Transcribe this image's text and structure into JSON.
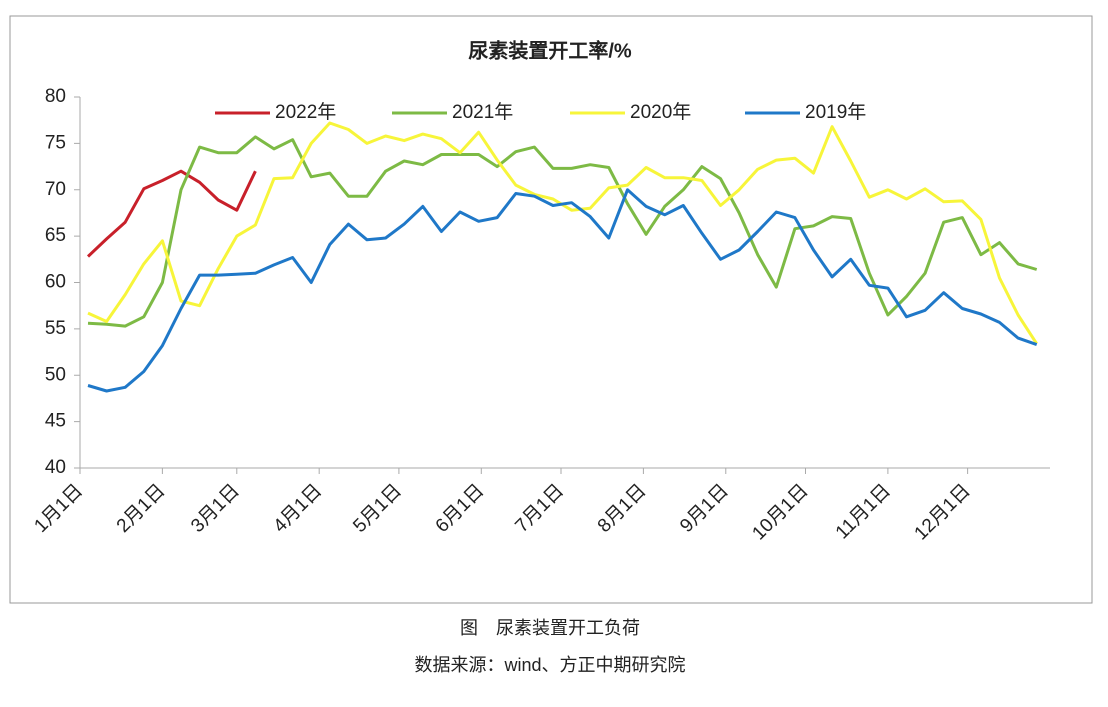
{
  "chart_data": {
    "type": "line",
    "title": "尿素装置开工率/%",
    "caption": "图　尿素装置开工负荷",
    "source": "数据来源：wind、方正中期研究院",
    "x": [
      4,
      11,
      18,
      25,
      32,
      39,
      46,
      53,
      60,
      67,
      74,
      81,
      88,
      95,
      102,
      109,
      116,
      123,
      130,
      137,
      144,
      151,
      158,
      165,
      172,
      179,
      186,
      193,
      200,
      207,
      214,
      221,
      228,
      235,
      242,
      249,
      256,
      263,
      270,
      277,
      284,
      291,
      298,
      305,
      312,
      319,
      326,
      333,
      340,
      347,
      354,
      361
    ],
    "xlim": [
      1,
      366
    ],
    "xticks": [
      {
        "value": 1,
        "label": "1月1日"
      },
      {
        "value": 32,
        "label": "2月1日"
      },
      {
        "value": 60,
        "label": "3月1日"
      },
      {
        "value": 91,
        "label": "4月1日"
      },
      {
        "value": 121,
        "label": "5月1日"
      },
      {
        "value": 152,
        "label": "6月1日"
      },
      {
        "value": 182,
        "label": "7月1日"
      },
      {
        "value": 213,
        "label": "8月1日"
      },
      {
        "value": 244,
        "label": "9月1日"
      },
      {
        "value": 274,
        "label": "10月1日"
      },
      {
        "value": 305,
        "label": "11月1日"
      },
      {
        "value": 335,
        "label": "12月1日"
      }
    ],
    "ylim": [
      40,
      80
    ],
    "yticks": [
      40,
      45,
      50,
      55,
      60,
      65,
      70,
      75,
      80
    ],
    "grid": false,
    "series": [
      {
        "name": "2022年",
        "color": "#c8202a",
        "values": [
          62.8,
          64.7,
          66.5,
          70.1,
          71.0,
          72.0,
          70.8,
          68.9,
          67.8,
          72.0,
          null,
          null,
          null,
          null,
          null,
          null,
          null,
          null,
          null,
          null,
          null,
          null,
          null,
          null,
          null,
          null,
          null,
          null,
          null,
          null,
          null,
          null,
          null,
          null,
          null,
          null,
          null,
          null,
          null,
          null,
          null,
          null,
          null,
          null,
          null,
          null,
          null,
          null,
          null,
          null,
          null,
          null
        ]
      },
      {
        "name": "2021年",
        "color": "#7dba45",
        "values": [
          55.6,
          55.5,
          55.3,
          56.3,
          60,
          70,
          74.6,
          74,
          74,
          75.7,
          74.4,
          75.4,
          71.4,
          71.8,
          69.3,
          69.3,
          72,
          73.1,
          72.7,
          73.8,
          73.8,
          73.8,
          72.5,
          74.1,
          74.6,
          72.3,
          72.3,
          72.7,
          72.4,
          68.5,
          65.2,
          68.2,
          70,
          72.5,
          71.2,
          67.5,
          63,
          59.5,
          65.8,
          66.1,
          67.1,
          66.9,
          61,
          56.5,
          58.5,
          61,
          66.5,
          67,
          63,
          64.3,
          62,
          61.4
        ]
      },
      {
        "name": "2020年",
        "color": "#f7f53a",
        "values": [
          56.7,
          55.8,
          58.7,
          62,
          64.5,
          58,
          57.5,
          61.5,
          65,
          66.2,
          71.2,
          71.3,
          75,
          77.2,
          76.5,
          75,
          75.8,
          75.3,
          76,
          75.5,
          74,
          76.2,
          73.2,
          70.5,
          69.5,
          69,
          67.8,
          68,
          70.2,
          70.5,
          72.4,
          71.3,
          71.3,
          71,
          68.3,
          70,
          72.2,
          73.2,
          73.4,
          71.8,
          76.8,
          73.1,
          69.2,
          70,
          69,
          70.1,
          68.7,
          68.8,
          66.8,
          60.5,
          56.5,
          53.4
        ]
      },
      {
        "name": "2019年",
        "color": "#1f78c8",
        "values": [
          48.9,
          48.3,
          48.7,
          50.4,
          53.2,
          57.2,
          60.8,
          60.8,
          60.9,
          61,
          61.9,
          62.7,
          60,
          64.1,
          66.3,
          64.6,
          64.8,
          66.3,
          68.2,
          65.5,
          67.6,
          66.6,
          67,
          69.6,
          69.3,
          68.3,
          68.6,
          67.1,
          64.8,
          70,
          68.2,
          67.3,
          68.3,
          65.3,
          62.5,
          63.5,
          65.5,
          67.6,
          67,
          63.5,
          60.6,
          62.5,
          59.7,
          59.4,
          56.3,
          57,
          58.9,
          57.2,
          56.6,
          55.7,
          54,
          53.3
        ]
      }
    ]
  }
}
